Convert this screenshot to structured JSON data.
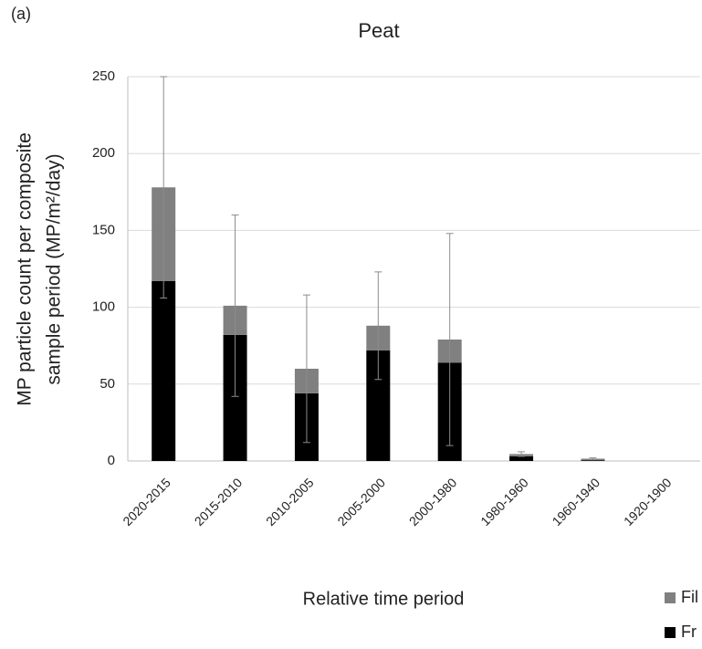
{
  "chart_data": {
    "type": "bar",
    "stacked": true,
    "panel_label": "(a)",
    "title": "Peat",
    "y_label": [
      "MP particle count per composite",
      "sample period (MP/m²/day)"
    ],
    "x_label": "Relative time period",
    "categories": [
      "2020-2015",
      "2015-2010",
      "2010-2005",
      "2005-2000",
      "2000-1980",
      "1980-1960",
      "1960-1940",
      "1920-1900"
    ],
    "series": [
      {
        "name": "Fr",
        "color": "#000000",
        "values": [
          117,
          82,
          44,
          72,
          64,
          3,
          0.5,
          0
        ]
      },
      {
        "name": "Fil",
        "color": "#808080",
        "values": [
          61,
          19,
          16,
          16,
          15,
          1.5,
          1,
          0
        ]
      }
    ],
    "errors": [
      72,
      59,
      48,
      35,
      69,
      1.5,
      0.5,
      0
    ],
    "ylim": [
      0,
      250
    ],
    "yticks": [
      0,
      50,
      100,
      150,
      200,
      250
    ],
    "grid": true
  }
}
